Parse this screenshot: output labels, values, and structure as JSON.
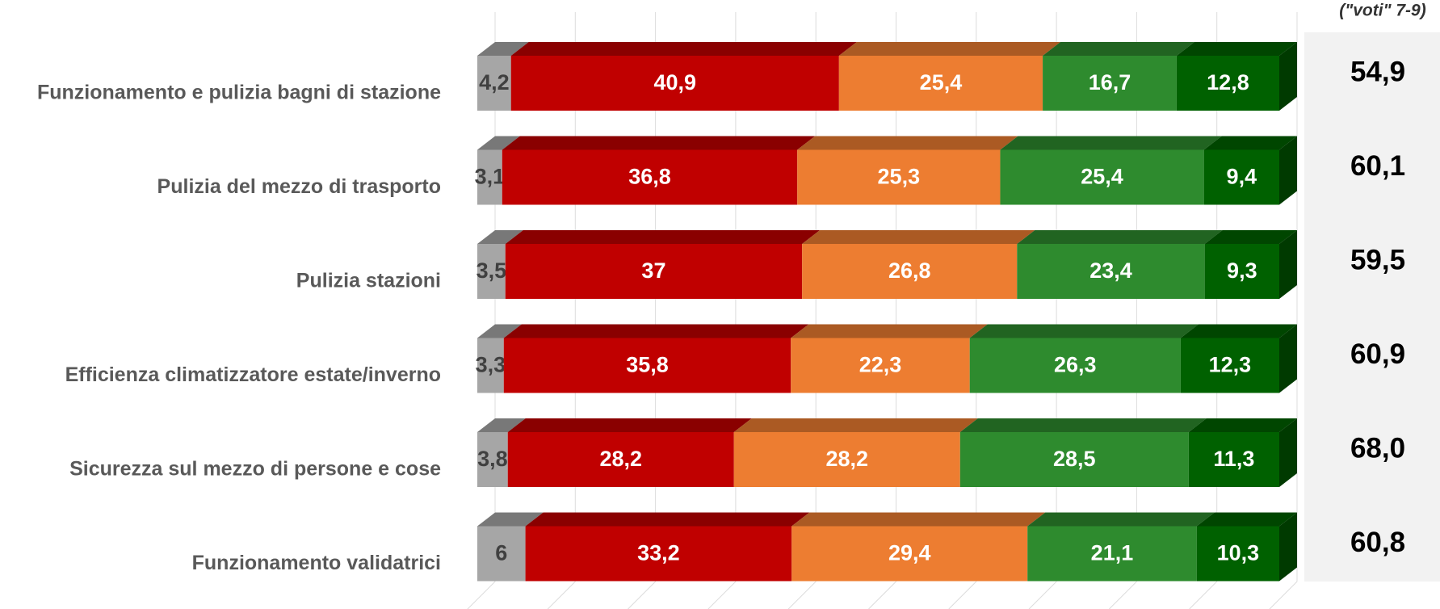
{
  "chart_data": {
    "type": "bar3d-stacked-horizontal",
    "categories": [
      "Funzionamento e pulizia bagni di stazione",
      "Pulizia del mezzo di trasporto",
      "Pulizia stazioni",
      "Efficienza climatizzatore estate/inverno",
      "Sicurezza sul mezzo di persone e cose",
      "Funzionamento validatrici"
    ],
    "series": [
      {
        "color": "#a6a6a6",
        "values": [
          4.2,
          3.1,
          3.5,
          3.3,
          3.8,
          6
        ],
        "value_labels": [
          "4,2",
          "3,1",
          "3,5",
          "3,3",
          "3,8",
          "6"
        ]
      },
      {
        "color": "#c00000",
        "values": [
          40.9,
          36.8,
          37,
          35.8,
          28.2,
          33.2
        ],
        "value_labels": [
          "40,9",
          "36,8",
          "37",
          "35,8",
          "28,2",
          "33,2"
        ]
      },
      {
        "color": "#ed7d31",
        "values": [
          25.4,
          25.3,
          26.8,
          22.3,
          28.2,
          29.4
        ],
        "value_labels": [
          "25,4",
          "25,3",
          "26,8",
          "22,3",
          "28,2",
          "29,4"
        ]
      },
      {
        "color": "#2e8b2e",
        "values": [
          16.7,
          25.4,
          23.4,
          26.3,
          28.5,
          21.1
        ],
        "value_labels": [
          "16,7",
          "25,4",
          "23,4",
          "26,3",
          "28,5",
          "21,1"
        ]
      },
      {
        "color": "#006100",
        "values": [
          12.8,
          9.4,
          9.3,
          12.3,
          11.3,
          10.3
        ],
        "value_labels": [
          "12,8",
          "9,4",
          "9,3",
          "12,3",
          "11,3",
          "10,3"
        ]
      }
    ],
    "xlim": [
      0,
      100
    ],
    "xticks": [
      0,
      10,
      20,
      30,
      40,
      50,
      60,
      70,
      80,
      90,
      100
    ],
    "grid": true,
    "totals_header": "(\"voti\" 7-9)",
    "totals": {
      "values": [
        54.9,
        60.1,
        59.5,
        60.9,
        68.0,
        60.8
      ],
      "value_labels": [
        "54,9",
        "60,1",
        "59,5",
        "60,9",
        "68,0",
        "60,8"
      ]
    }
  }
}
